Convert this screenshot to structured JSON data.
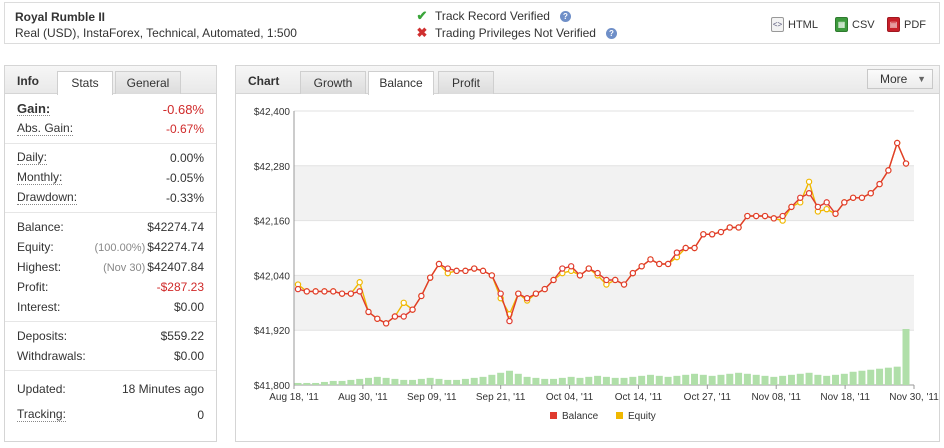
{
  "header": {
    "name": "Royal Rumble II",
    "description": "Real (USD), InstaForex, Technical, Automated, 1:500",
    "verified_track": "Track Record Verified",
    "verified_trading": "Trading Privileges Not Verified",
    "verified_track_icon": "check-icon",
    "verified_trading_icon": "cross-icon",
    "help_symbol": "?",
    "exports": {
      "html": "HTML",
      "csv": "CSV",
      "pdf": "PDF"
    }
  },
  "info_panel": {
    "title": "Info",
    "tabs": [
      "Stats",
      "General"
    ],
    "active_tab": "Stats",
    "gain": {
      "label": "Gain:",
      "value": "-0.68%"
    },
    "abs_gain": {
      "label": "Abs. Gain:",
      "value": "-0.67%"
    },
    "daily": {
      "label": "Daily:",
      "value": "0.00%"
    },
    "monthly": {
      "label": "Monthly:",
      "value": "-0.05%"
    },
    "drawdown": {
      "label": "Drawdown:",
      "value": "-0.33%"
    },
    "balance": {
      "label": "Balance:",
      "value": "$42274.74"
    },
    "equity": {
      "label": "Equity:",
      "note": "(100.00%)",
      "value": "$42274.74"
    },
    "highest": {
      "label": "Highest:",
      "note": "(Nov 30)",
      "value": "$42407.84"
    },
    "profit": {
      "label": "Profit:",
      "value": "-$287.23"
    },
    "interest": {
      "label": "Interest:",
      "value": "$0.00"
    },
    "deposits": {
      "label": "Deposits:",
      "value": "$559.22"
    },
    "withdrawals": {
      "label": "Withdrawals:",
      "value": "$0.00"
    },
    "updated": {
      "label": "Updated:",
      "value": "18 Minutes ago"
    },
    "tracking": {
      "label": "Tracking:",
      "value": "0"
    }
  },
  "chart_panel": {
    "title": "Chart",
    "tabs": [
      "Growth",
      "Balance",
      "Profit"
    ],
    "active_tab": "Balance",
    "more_label": "More"
  },
  "chart_data": {
    "type": "line",
    "ylim": [
      41800,
      42400
    ],
    "y_ticks": [
      41800,
      41920,
      42040,
      42160,
      42280,
      42400
    ],
    "y_tick_labels": [
      "$41,800",
      "$41,920",
      "$42,040",
      "$42,160",
      "$42,280",
      "$42,400"
    ],
    "x_tick_labels": [
      "Aug 18, '11",
      "Aug 30, '11",
      "Sep 09, '11",
      "Sep 21, '11",
      "Oct 04, '11",
      "Oct 14, '11",
      "Oct 27, '11",
      "Nov 08, '11",
      "Nov 18, '11",
      "Nov 30, '11"
    ],
    "series": [
      {
        "name": "Balance",
        "color": "#e03a2e",
        "values": [
          42010,
          42005,
          42005,
          42005,
          42005,
          42000,
          42000,
          42005,
          41960,
          41945,
          41935,
          41950,
          41950,
          41965,
          41995,
          42035,
          42065,
          42055,
          42050,
          42050,
          42055,
          42050,
          42040,
          42000,
          41940,
          42000,
          41990,
          42000,
          42010,
          42030,
          42055,
          42060,
          42040,
          42055,
          42045,
          42030,
          42030,
          42020,
          42045,
          42060,
          42075,
          42065,
          42065,
          42090,
          42100,
          42100,
          42130,
          42130,
          42135,
          42145,
          42145,
          42170,
          42170,
          42170,
          42165,
          42170,
          42190,
          42210,
          42220,
          42190,
          42200,
          42175,
          42200,
          42210,
          42210,
          42220,
          42240,
          42270,
          42330,
          42285
        ]
      },
      {
        "name": "Equity",
        "color": "#f0b800",
        "values": [
          42020,
          42005,
          42005,
          42005,
          42005,
          42000,
          42000,
          42025,
          41960,
          41945,
          41935,
          41950,
          41980,
          41965,
          41995,
          42035,
          42065,
          42045,
          42050,
          42050,
          42055,
          42050,
          42040,
          41990,
          41955,
          42000,
          41985,
          42000,
          42010,
          42030,
          42045,
          42050,
          42040,
          42055,
          42040,
          42020,
          42030,
          42020,
          42045,
          42060,
          42075,
          42065,
          42065,
          42080,
          42100,
          42100,
          42130,
          42130,
          42135,
          42145,
          42145,
          42170,
          42170,
          42170,
          42165,
          42160,
          42190,
          42200,
          42245,
          42180,
          42185,
          42175,
          42200,
          42210,
          42210,
          42220,
          42240,
          42270,
          42330,
          42285
        ]
      }
    ],
    "volume": [
      2,
      2,
      2,
      3,
      4,
      4,
      5,
      6,
      7,
      8,
      7,
      6,
      5,
      5,
      6,
      7,
      6,
      5,
      5,
      6,
      7,
      8,
      10,
      12,
      14,
      11,
      8,
      7,
      6,
      6,
      7,
      8,
      7,
      8,
      9,
      8,
      7,
      7,
      8,
      9,
      10,
      9,
      8,
      9,
      10,
      11,
      10,
      9,
      10,
      11,
      12,
      11,
      10,
      9,
      8,
      9,
      10,
      11,
      12,
      10,
      9,
      10,
      11,
      13,
      14,
      15,
      16,
      17,
      18,
      55
    ],
    "legend_position": "bottom-center",
    "grid": true
  }
}
